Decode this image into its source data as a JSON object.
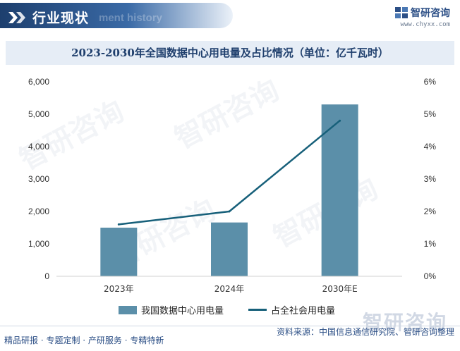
{
  "header": {
    "title": "行业现状",
    "ghost_text": "ment history",
    "brand_name": "智研咨询",
    "brand_url": "www.chyxx.com"
  },
  "colors": {
    "header": "#2a5590",
    "bar": "#5b8fa9",
    "line": "#17607a",
    "title_bg": "#e6edf6",
    "brand": "#2c4f86"
  },
  "chart_data": {
    "type": "bar",
    "title": "2023-2030年全国数据中心用电量及占比情况（单位：亿千瓦时）",
    "categories": [
      "2023年",
      "2024年",
      "2030年E"
    ],
    "series": [
      {
        "name": "我国数据中心用电量",
        "type": "bar",
        "axis": "left",
        "values": [
          1500,
          1660,
          5300
        ]
      },
      {
        "name": "占全社会用电量",
        "type": "line",
        "axis": "right",
        "values": [
          1.6,
          2.0,
          4.8
        ]
      }
    ],
    "y_left": {
      "min": 0,
      "max": 6000,
      "ticks": [
        0,
        1000,
        2000,
        3000,
        4000,
        5000,
        6000
      ],
      "tick_labels": [
        "0",
        "1,000",
        "2,000",
        "3,000",
        "4,000",
        "5,000",
        "6,000"
      ]
    },
    "y_right": {
      "min": 0,
      "max": 6,
      "ticks": [
        0,
        1,
        2,
        3,
        4,
        5,
        6
      ],
      "tick_labels": [
        "0%",
        "1%",
        "2%",
        "3%",
        "4%",
        "5%",
        "6%"
      ]
    },
    "grid": false,
    "legend_position": "bottom"
  },
  "watermark": "智研咨询",
  "footer": {
    "left": "精品研报 · 专题定制 · 产研服务 · 专精特新",
    "right": "资料来源：中国信息通信研究院、智研咨询整理",
    "big_brand": "智研咨询"
  }
}
